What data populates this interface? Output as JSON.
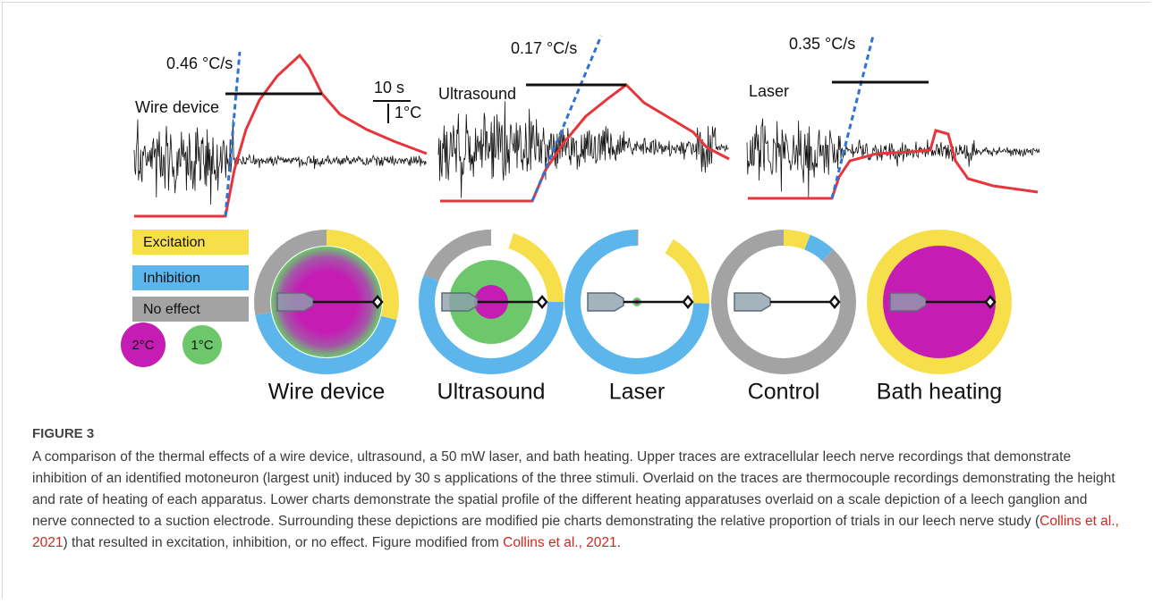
{
  "figure": {
    "traces": [
      {
        "rate": "0.46 °C/s",
        "label": "Wire device"
      },
      {
        "rate": "0.17 °C/s",
        "label": "Ultrasound"
      },
      {
        "rate": "0.35 °C/s",
        "label": "Laser"
      }
    ],
    "scale_bar": {
      "time": "10 s",
      "temperature": "1°C"
    },
    "legend": {
      "categories": [
        {
          "name": "Excitation",
          "color": "#f7df4b"
        },
        {
          "name": "Inhibition",
          "color": "#5cb6ec"
        },
        {
          "name": "No effect",
          "color": "#a3a3a3"
        }
      ],
      "temperatures": [
        "2°C",
        "1°C"
      ]
    },
    "donuts": [
      {
        "label": "Wire device",
        "values": [
          29,
          43,
          28
        ]
      },
      {
        "label": "Ultrasound",
        "values": [
          20,
          56,
          24
        ]
      },
      {
        "label": "Laser",
        "values": [
          17,
          75,
          8
        ]
      },
      {
        "label": "Control",
        "values": [
          6,
          6,
          88
        ]
      },
      {
        "label": "Bath heating",
        "values": [
          100,
          0,
          0
        ]
      }
    ]
  },
  "caption": {
    "label": "FIGURE 3",
    "text_1": "A comparison of the thermal effects of a wire device, ultrasound, a 50 mW laser, and bath heating. Upper traces are extracellular leech nerve recordings that demonstrate inhibition of an identified motoneuron (largest unit) induced by 30 s applications of the three stimuli. Overlaid on the traces are thermocouple recordings demonstrating the height and rate of heating of each apparatus. Lower charts demonstrate the spatial profile of the different heating apparatuses overlaid on a scale depiction of a leech ganglion and nerve connected to a suction electrode. Surrounding these depictions are modified pie charts demonstrating the relative proportion of trials in our leech nerve study (",
    "citation_1": "Collins et al., 2021",
    "text_2": ") that resulted in excitation, inhibition, or no effect. Figure modified from ",
    "citation_2": "Collins et al., 2021",
    "text_3": "."
  }
}
